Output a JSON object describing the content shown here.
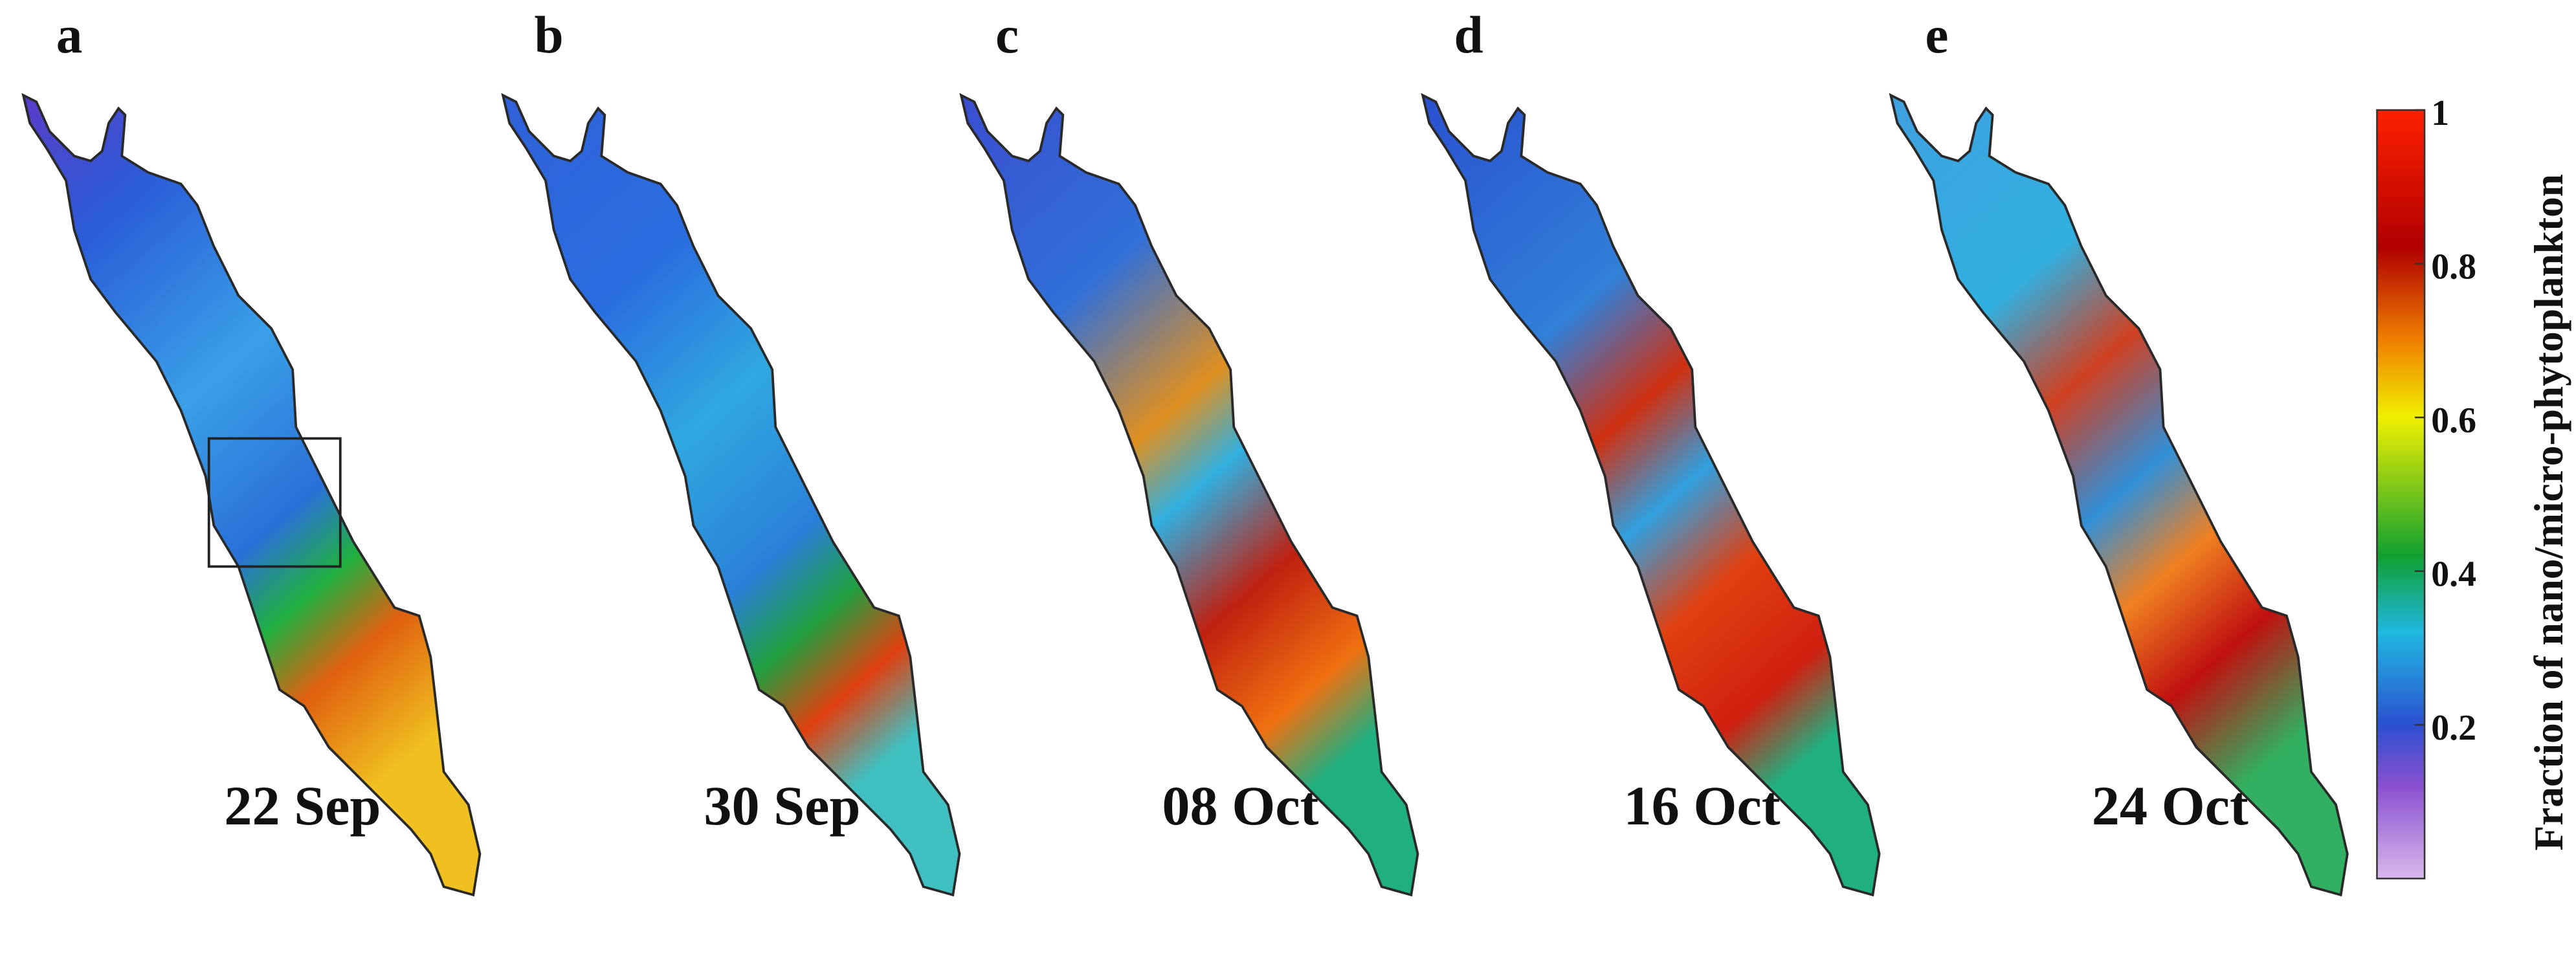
{
  "panels": [
    {
      "label": "a",
      "date": "22 Sep"
    },
    {
      "label": "b",
      "date": "30 Sep"
    },
    {
      "label": "c",
      "date": "08 Oct"
    },
    {
      "label": "d",
      "date": "16 Oct"
    },
    {
      "label": "e",
      "date": "24 Oct"
    }
  ],
  "colorbar": {
    "title": "Fraction of nano/micro-phytoplankton",
    "lim": [
      0,
      1
    ],
    "ticks": [
      0.2,
      0.4,
      0.6,
      0.8,
      1
    ]
  }
}
